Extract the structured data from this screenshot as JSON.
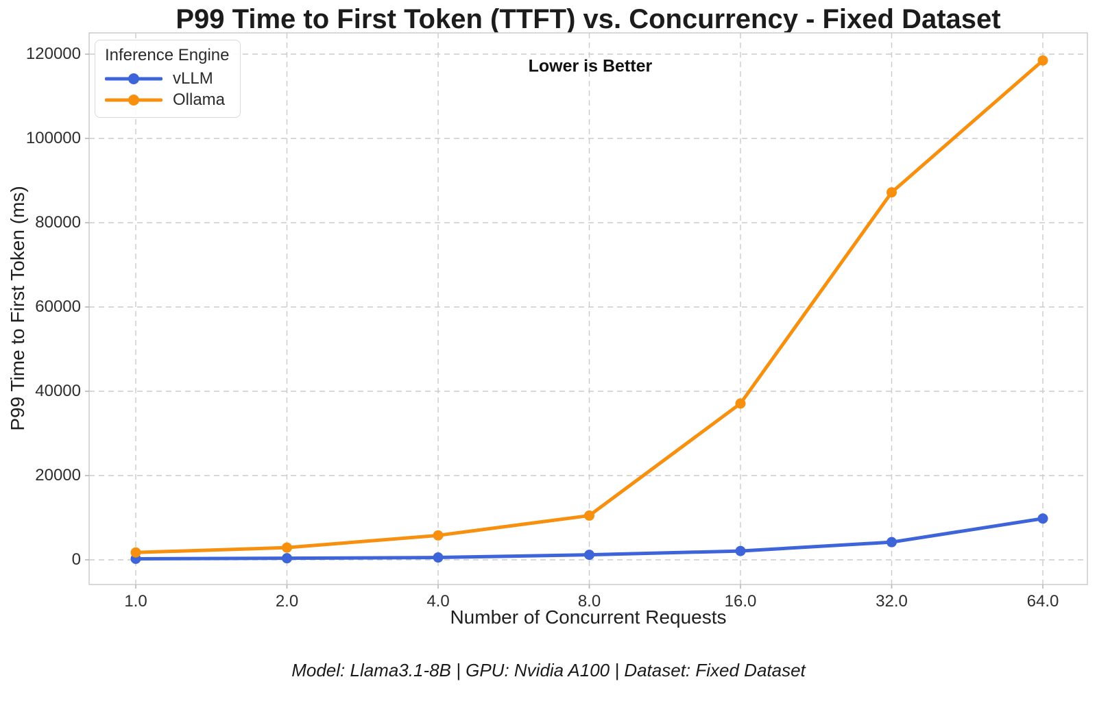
{
  "figure": {
    "title": "P99 Time to First Token (TTFT) vs. Concurrency - Fixed Dataset",
    "annotation": "Lower is Better",
    "footer": "Model: Llama3.1-8B | GPU: Nvidia A100 | Dataset: Fixed Dataset"
  },
  "legend": {
    "title": "Inference Engine",
    "position": "upper left",
    "entries": [
      {
        "label": "vLLM",
        "color": "#3D64D8"
      },
      {
        "label": "Ollama",
        "color": "#F7900F"
      }
    ]
  },
  "chart_data": {
    "type": "line",
    "title": "P99 Time to First Token (TTFT) vs. Concurrency - Fixed Dataset",
    "xlabel": "Number of Concurrent Requests",
    "ylabel": "P99 Time to First Token (ms)",
    "x_scale": "log2",
    "x": [
      1.0,
      2.0,
      4.0,
      8.0,
      16.0,
      32.0,
      64.0
    ],
    "x_tick_labels": [
      "1.0",
      "2.0",
      "4.0",
      "8.0",
      "16.0",
      "32.0",
      "64.0"
    ],
    "y_ticks": [
      0,
      20000,
      40000,
      60000,
      80000,
      100000,
      120000
    ],
    "y_tick_labels": [
      "0",
      "20000",
      "40000",
      "60000",
      "80000",
      "100000",
      "120000"
    ],
    "ylim": [
      -5850,
      125050
    ],
    "grid": {
      "show": true,
      "style": "dashed",
      "color": "#cbcbcb"
    },
    "legend_position": "upper left",
    "series": [
      {
        "name": "vLLM",
        "color": "#3D64D8",
        "marker": "circle",
        "values": [
          250,
          380,
          560,
          1200,
          2100,
          4200,
          9800
        ]
      },
      {
        "name": "Ollama",
        "color": "#F7900F",
        "marker": "circle",
        "values": [
          1750,
          2900,
          5800,
          10500,
          37100,
          87200,
          118500
        ]
      }
    ],
    "annotation": "Lower is Better",
    "footer": "Model: Llama3.1-8B | GPU: Nvidia A100 | Dataset: Fixed Dataset"
  },
  "style": {
    "spine_color": "#cfcfcf",
    "tick_mark_color": "#b5b5b5",
    "line_width": 5,
    "marker_radius": 7.5
  }
}
